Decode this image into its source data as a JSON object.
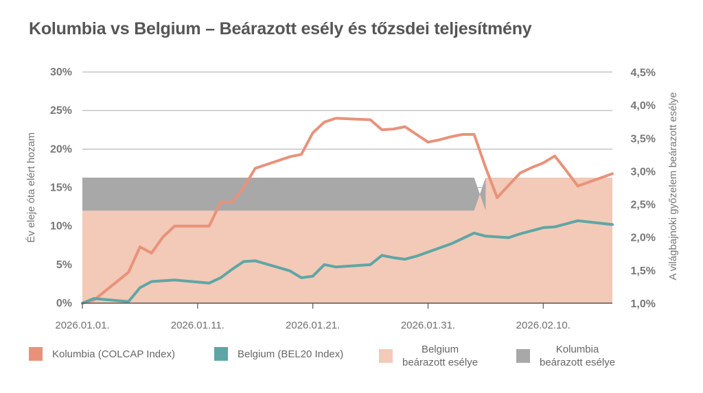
{
  "colors": {
    "colombia": "#e8927a",
    "belgium": "#5ea6a6",
    "belgium_prob": "#f3c9b7",
    "colombia_prob": "#a8a8a8",
    "grid": "#a8a8a8"
  },
  "chart_data": {
    "type": "line",
    "title": "Kolumbia vs Belgium – Beárazott esély és tőzsdei teljesítmény",
    "ylabel": "Év eleje óta elért hozam",
    "y2label": "A világbajnoki győzelem beárazott esélye",
    "ylim": [
      0,
      30
    ],
    "y2lim": [
      1.0,
      4.5
    ],
    "yticks": [
      "0%",
      "5%",
      "10%",
      "15%",
      "20%",
      "25%",
      "30%"
    ],
    "y2ticks": [
      "1,0%",
      "1,5%",
      "2,0%",
      "2,5%",
      "3,0%",
      "3,5%",
      "4,0%",
      "4,5%"
    ],
    "xlim": [
      0,
      46
    ],
    "xticks": [
      {
        "x": 0,
        "label": "2026.01.01."
      },
      {
        "x": 10,
        "label": "2026.01.11."
      },
      {
        "x": 20,
        "label": "2026.01.21."
      },
      {
        "x": 30,
        "label": "2026.01.31."
      },
      {
        "x": 40,
        "label": "2026.02.10."
      }
    ],
    "series": [
      {
        "name": "Kolumbia (COLCAP Index)",
        "axis": "left",
        "x": [
          0,
          1,
          4,
          5,
          6,
          7,
          8,
          11,
          12,
          13,
          14,
          15,
          18,
          19,
          20,
          21,
          22,
          25,
          26,
          27,
          28,
          30,
          31,
          32,
          33,
          34,
          35,
          36,
          38,
          39,
          40,
          41,
          42,
          43,
          46
        ],
        "values": [
          0,
          0.4,
          4.0,
          7.3,
          6.5,
          8.6,
          10.0,
          10.0,
          13.1,
          13.1,
          15.0,
          17.5,
          19.0,
          19.3,
          22.1,
          23.5,
          24.0,
          23.8,
          22.5,
          22.6,
          22.9,
          20.9,
          21.2,
          21.6,
          21.9,
          21.9,
          17.6,
          13.7,
          16.9,
          17.6,
          18.2,
          19.1,
          17.2,
          15.2,
          16.8
        ]
      },
      {
        "name": "Belgium (BEL20 Index)",
        "axis": "left",
        "x": [
          0,
          1,
          4,
          5,
          6,
          8,
          11,
          12,
          13,
          14,
          15,
          18,
          19,
          20,
          21,
          22,
          25,
          26,
          27,
          28,
          29,
          32,
          33,
          34,
          35,
          37,
          38,
          39,
          40,
          41,
          42,
          43,
          46
        ],
        "values": [
          0,
          0.6,
          0.2,
          2.0,
          2.8,
          3.0,
          2.6,
          3.3,
          4.4,
          5.4,
          5.5,
          4.2,
          3.3,
          3.5,
          5.0,
          4.7,
          5.0,
          6.2,
          5.9,
          5.7,
          6.1,
          7.7,
          8.4,
          9.1,
          8.7,
          8.5,
          9.0,
          9.4,
          9.8,
          9.9,
          10.3,
          10.7,
          10.2
        ]
      }
    ],
    "areas": [
      {
        "name": "Belgium beárazott esélye",
        "axis": "right",
        "x": [
          0,
          34,
          35,
          46
        ],
        "values": [
          2.4,
          2.4,
          2.9,
          2.9
        ]
      },
      {
        "name": "Kolumbia beárazott esélye",
        "axis": "right",
        "x": [
          0,
          34,
          35
        ],
        "values": [
          2.9,
          2.9,
          2.4
        ]
      }
    ]
  },
  "legend": {
    "colombia": "Kolumbia (COLCAP Index)",
    "belgium": "Belgium (BEL20 Index)",
    "belgium_prob_line1": "Belgium",
    "belgium_prob_line2": "beárazott esélye",
    "colombia_prob_line1": "Kolumbia",
    "colombia_prob_line2": "beárazott esélye"
  }
}
